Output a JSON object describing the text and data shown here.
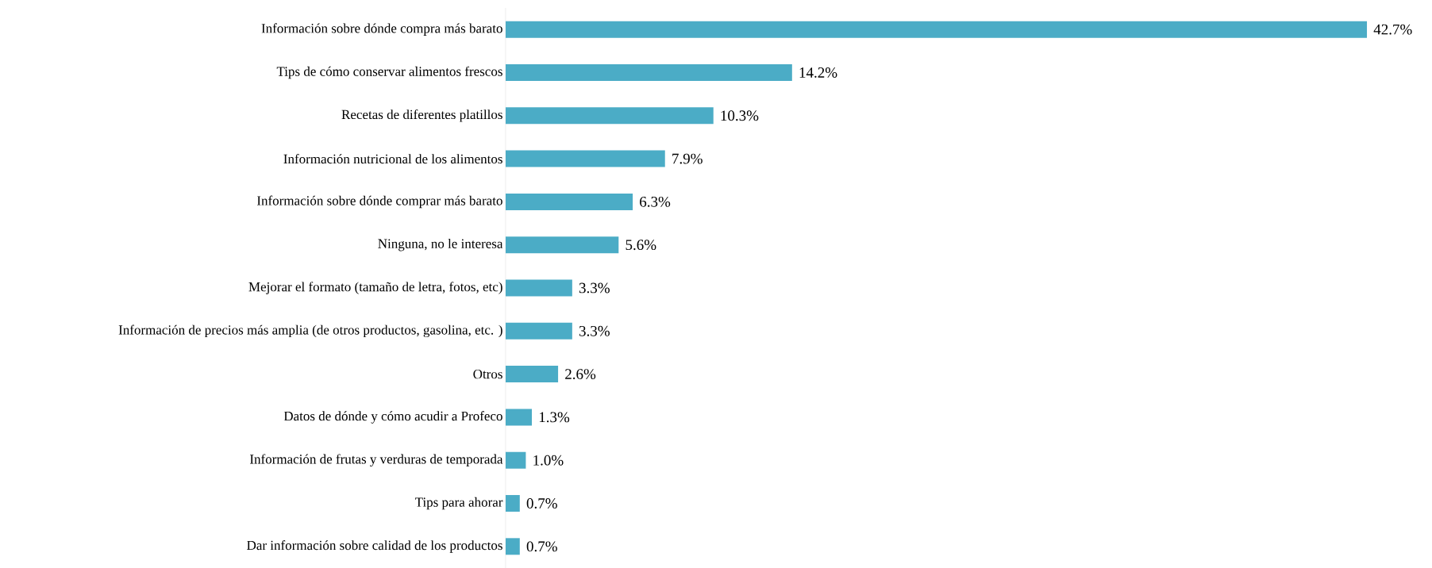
{
  "chart_data": {
    "type": "bar",
    "orientation": "horizontal",
    "color": "#4bacc6",
    "categories": [
      "Información sobre dónde compra más barato",
      "Tips de cómo conservar alimentos frescos",
      "Recetas de diferentes platillos",
      "Información nutricional de los alimentos",
      "Información sobre dónde comprar más barato",
      "Ninguna, no le interesa",
      "Mejorar el formato (tamaño de letra, fotos, etc)",
      "Información de precios más amplia (de otros productos, gasolina, etc. )",
      "Otros",
      "Datos de dónde y cómo acudir a Profeco",
      "Información de frutas y verduras de temporada",
      "Tips para ahorar",
      "Dar información sobre calidad de los productos"
    ],
    "values": [
      42.7,
      14.2,
      10.3,
      7.9,
      6.3,
      5.6,
      3.3,
      3.3,
      2.6,
      1.3,
      1.0,
      0.7,
      0.7
    ],
    "value_labels": [
      "42.7%",
      "14.2%",
      "10.3%",
      "7.9%",
      "6.3%",
      "5.6%",
      "3.3%",
      "3.3%",
      "2.6%",
      "1.3%",
      "1.0%",
      "0.7%",
      "0.7%"
    ]
  }
}
